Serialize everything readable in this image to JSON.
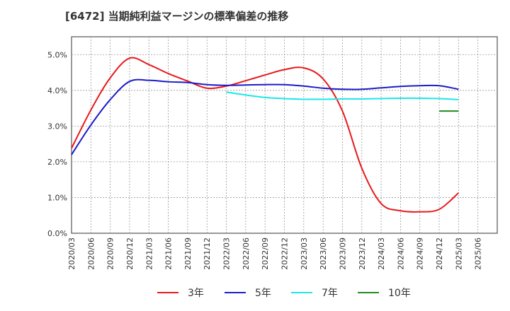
{
  "chart_data": {
    "type": "line",
    "title": "[6472]  当期純利益マージンの標準偏差の推移",
    "xlabel": "",
    "ylabel": "",
    "ylim": [
      0,
      5.5
    ],
    "yticks": [
      0,
      1,
      2,
      3,
      4,
      5
    ],
    "ytick_labels": [
      "0.0%",
      "1.0%",
      "2.0%",
      "3.0%",
      "4.0%",
      "5.0%"
    ],
    "x_categories": [
      "2020/03",
      "2020/06",
      "2020/09",
      "2020/12",
      "2021/03",
      "2021/06",
      "2021/09",
      "2021/12",
      "2022/03",
      "2022/06",
      "2022/09",
      "2022/12",
      "2023/03",
      "2023/06",
      "2023/09",
      "2023/12",
      "2024/03",
      "2024/06",
      "2024/09",
      "2024/12",
      "2025/03",
      "2025/06"
    ],
    "grid": true,
    "legend_position": "bottom",
    "series": [
      {
        "name": "3年",
        "color": "#e8191b",
        "x": [
          "2020/03",
          "2020/06",
          "2020/09",
          "2020/12",
          "2021/03",
          "2021/06",
          "2021/09",
          "2021/12",
          "2022/03",
          "2022/06",
          "2022/09",
          "2022/12",
          "2023/03",
          "2023/06",
          "2023/09",
          "2023/12",
          "2024/03",
          "2024/06",
          "2024/09",
          "2024/12",
          "2025/03"
        ],
        "values": [
          2.38,
          3.45,
          4.35,
          4.9,
          4.72,
          4.47,
          4.26,
          4.06,
          4.12,
          4.27,
          4.43,
          4.58,
          4.63,
          4.32,
          3.42,
          1.82,
          0.83,
          0.63,
          0.6,
          0.67,
          1.13
        ]
      },
      {
        "name": "5年",
        "color": "#1c1cc8",
        "x": [
          "2020/03",
          "2020/06",
          "2020/09",
          "2020/12",
          "2021/03",
          "2021/06",
          "2021/09",
          "2021/12",
          "2022/03",
          "2022/06",
          "2022/09",
          "2022/12",
          "2023/03",
          "2023/06",
          "2023/09",
          "2023/12",
          "2024/03",
          "2024/06",
          "2024/09",
          "2024/12",
          "2025/03"
        ],
        "values": [
          2.2,
          3.03,
          3.74,
          4.25,
          4.28,
          4.24,
          4.22,
          4.16,
          4.14,
          4.15,
          4.16,
          4.16,
          4.12,
          4.06,
          4.03,
          4.03,
          4.07,
          4.11,
          4.13,
          4.13,
          4.03
        ]
      },
      {
        "name": "7年",
        "color": "#1ee6e6",
        "x": [
          "2022/03",
          "2022/06",
          "2022/09",
          "2022/12",
          "2023/03",
          "2023/06",
          "2023/09",
          "2023/12",
          "2024/03",
          "2024/06",
          "2024/09",
          "2024/12",
          "2025/03"
        ],
        "values": [
          3.95,
          3.87,
          3.8,
          3.77,
          3.75,
          3.75,
          3.76,
          3.76,
          3.77,
          3.78,
          3.78,
          3.77,
          3.74
        ]
      },
      {
        "name": "10年",
        "color": "#228b22",
        "x": [
          "2024/12",
          "2025/03"
        ],
        "values": [
          3.42,
          3.42
        ]
      }
    ]
  }
}
